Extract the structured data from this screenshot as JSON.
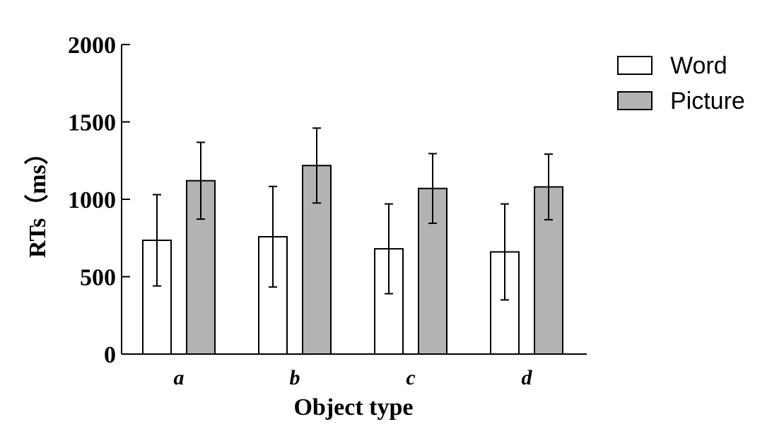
{
  "chart_data": {
    "type": "bar",
    "categories": [
      "a",
      "b",
      "c",
      "d"
    ],
    "series": [
      {
        "name": "Word",
        "values": [
          735,
          758,
          680,
          660
        ],
        "errors": [
          295,
          325,
          290,
          310
        ],
        "color": "#ffffff"
      },
      {
        "name": "Picture",
        "values": [
          1120,
          1218,
          1070,
          1080
        ],
        "errors": [
          248,
          242,
          225,
          212
        ],
        "color": "#b3b3b3"
      }
    ],
    "xlabel": "Object type",
    "ylabel": "RTs（ms）",
    "ylim": [
      0,
      2000
    ],
    "yticks": [
      "0",
      "500",
      "1000",
      "1500",
      "2000"
    ],
    "legend": "top-right",
    "grid": false
  }
}
